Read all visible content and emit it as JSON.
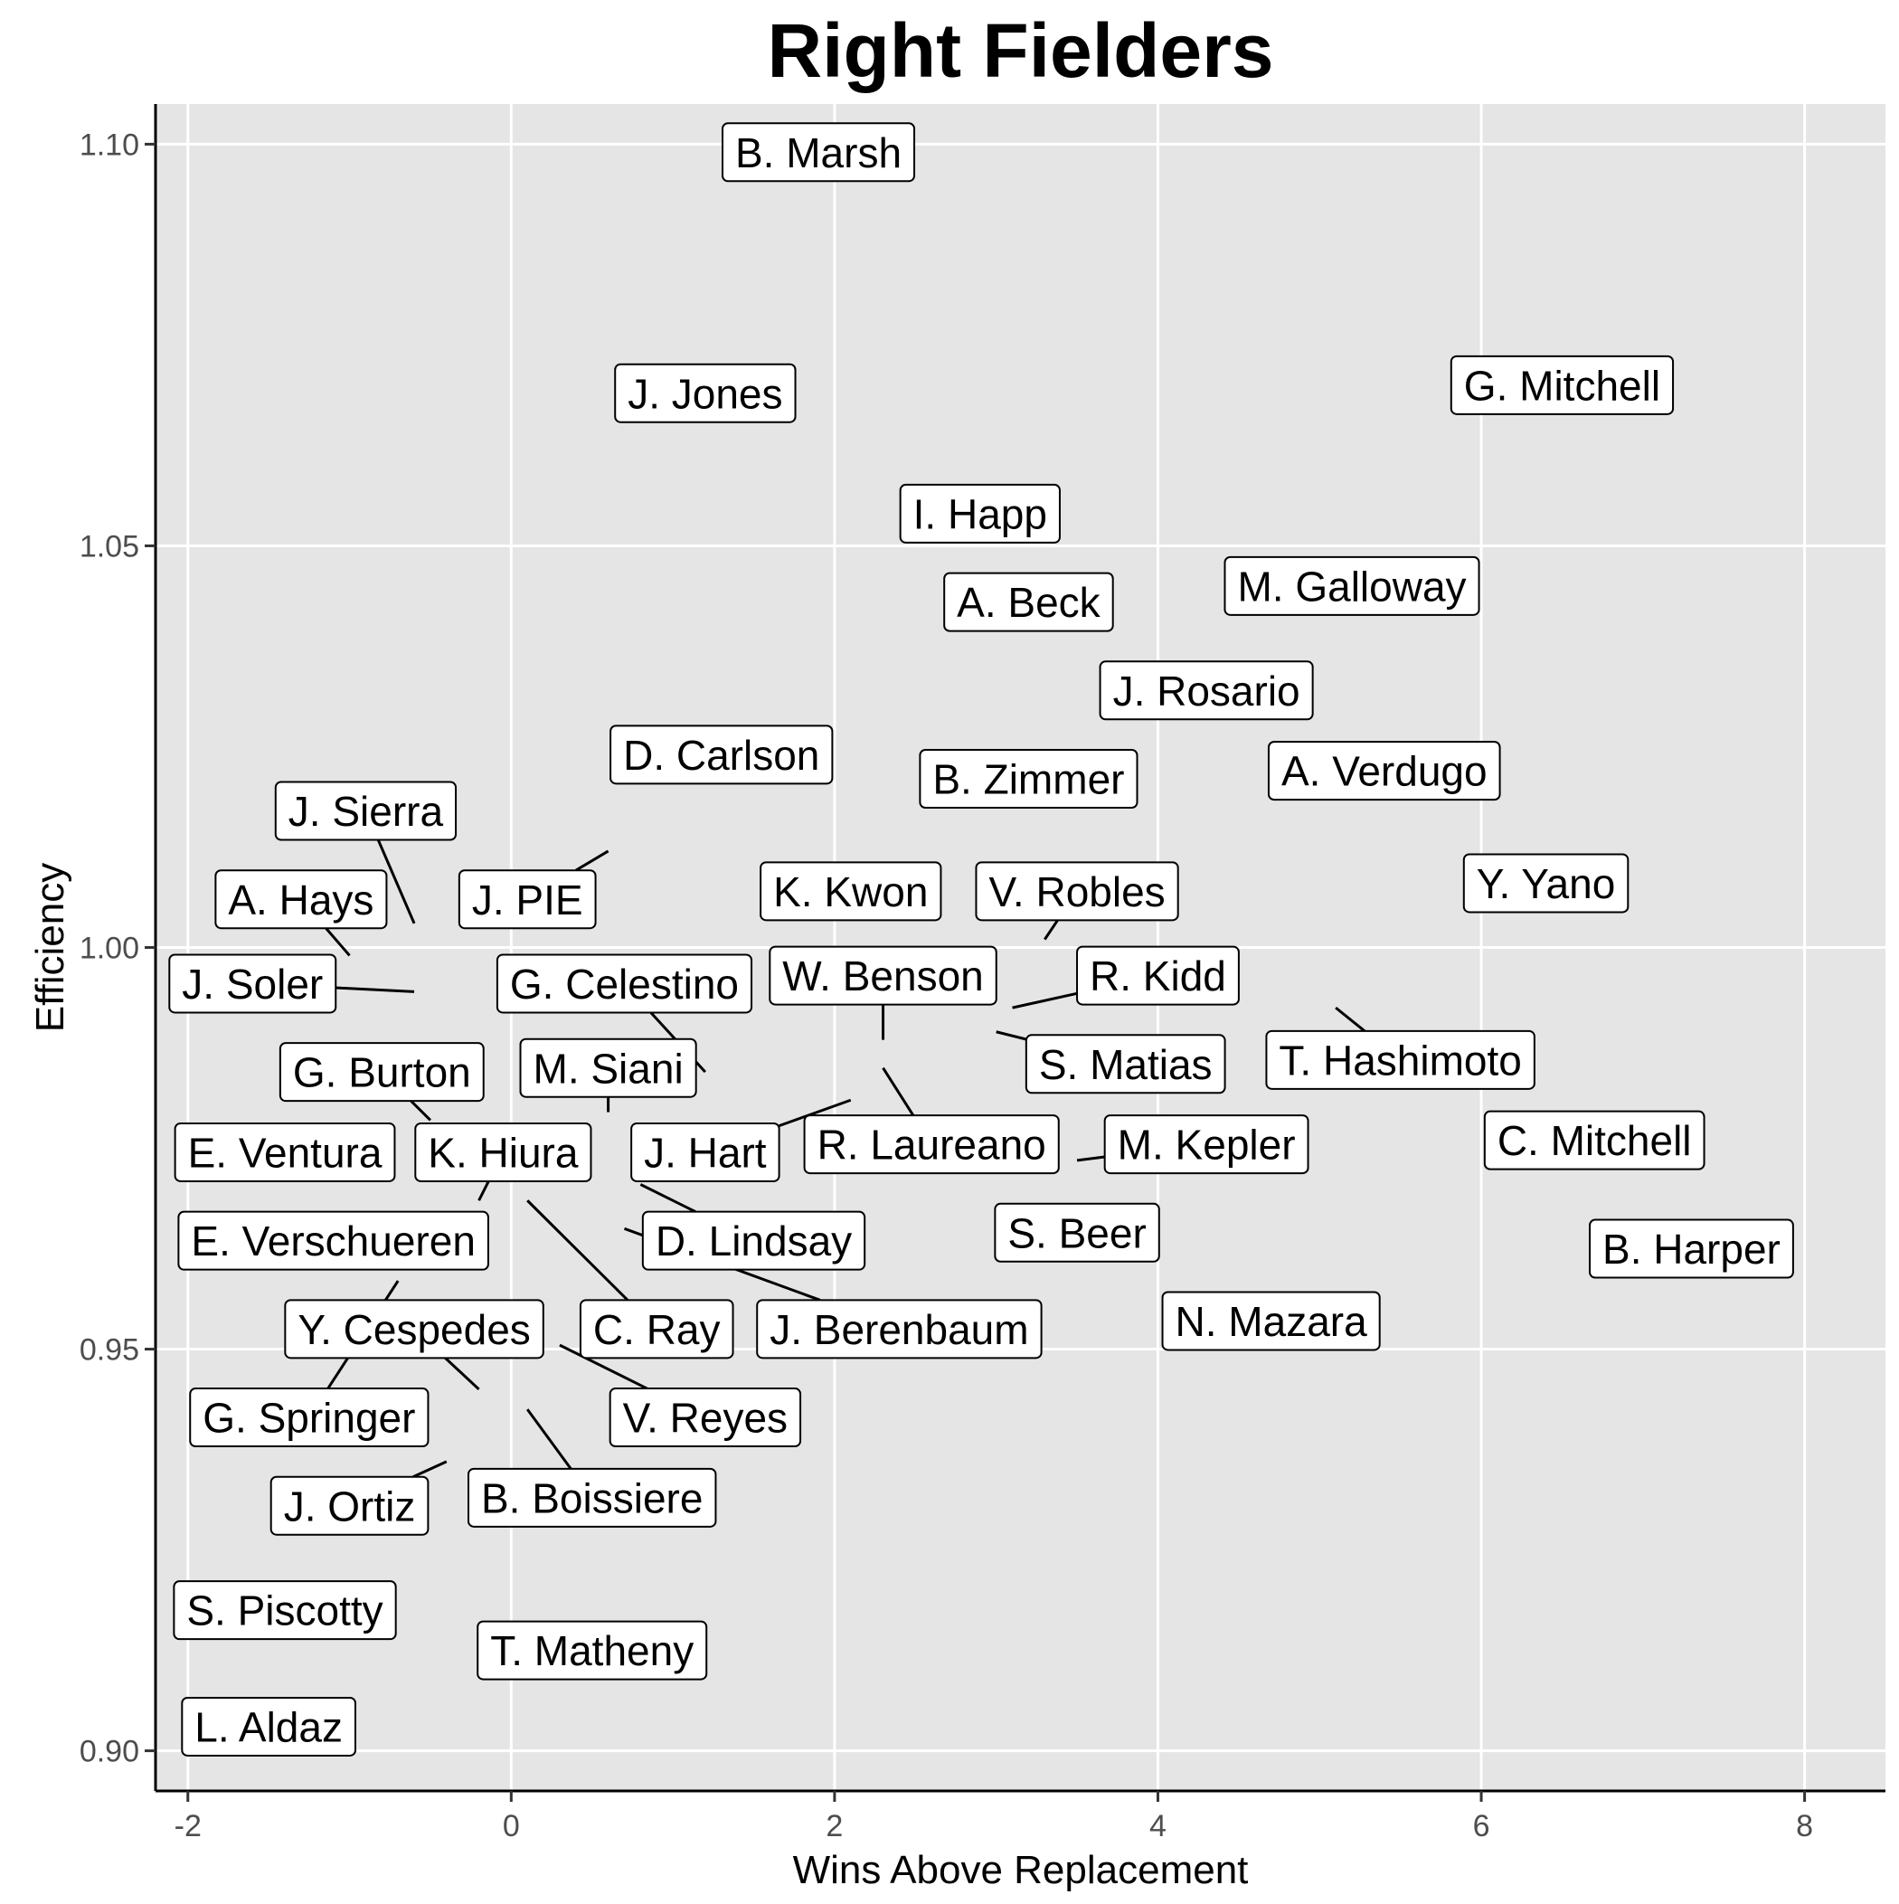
{
  "chart_data": {
    "type": "scatter",
    "title": "Right Fielders",
    "xlabel": "Wins Above Replacement",
    "ylabel": "Efficiency",
    "xlim": [
      -2.2,
      8.5
    ],
    "ylim": [
      0.895,
      1.105
    ],
    "x_ticks": [
      -2,
      0,
      2,
      4,
      6,
      8
    ],
    "x_tick_labels": [
      "-2",
      "0",
      "2",
      "4",
      "6",
      "8"
    ],
    "y_ticks": [
      0.9,
      0.95,
      1.0,
      1.05,
      1.1
    ],
    "y_tick_labels": [
      "0.90",
      "0.95",
      "1.00",
      "1.05",
      "1.10"
    ],
    "grid": true,
    "colors": {
      "panel": "#e5e5e5",
      "grid": "#ffffff",
      "label_bg": "#ffffff",
      "text": "#000000",
      "axis_text": "#4d4d4d"
    },
    "points": [
      {
        "name": "B. Marsh",
        "x": 1.9,
        "y": 1.099,
        "lx": 1.9,
        "ly": 1.099
      },
      {
        "name": "J. Jones",
        "x": 1.2,
        "y": 1.069,
        "lx": 1.2,
        "ly": 1.069
      },
      {
        "name": "G. Mitchell",
        "x": 6.5,
        "y": 1.07,
        "lx": 6.5,
        "ly": 1.07
      },
      {
        "name": "I. Happ",
        "x": 2.9,
        "y": 1.054,
        "lx": 2.9,
        "ly": 1.054
      },
      {
        "name": "A. Beck",
        "x": 3.2,
        "y": 1.043,
        "lx": 3.2,
        "ly": 1.043
      },
      {
        "name": "M. Galloway",
        "x": 5.2,
        "y": 1.045,
        "lx": 5.2,
        "ly": 1.045
      },
      {
        "name": "J. Rosario",
        "x": 4.3,
        "y": 1.032,
        "lx": 4.3,
        "ly": 1.032
      },
      {
        "name": "D. Carlson",
        "x": 1.3,
        "y": 1.024,
        "lx": 1.3,
        "ly": 1.024
      },
      {
        "name": "B. Zimmer",
        "x": 3.2,
        "y": 1.021,
        "lx": 3.2,
        "ly": 1.021
      },
      {
        "name": "A. Verdugo",
        "x": 5.4,
        "y": 1.022,
        "lx": 5.4,
        "ly": 1.022
      },
      {
        "name": "J. Sierra",
        "x": -0.6,
        "y": 1.003,
        "lx": -0.9,
        "ly": 1.017
      },
      {
        "name": "J. PIE",
        "x": 0.6,
        "y": 1.012,
        "lx": 0.1,
        "ly": 1.006
      },
      {
        "name": "A. Hays",
        "x": -1.0,
        "y": 0.999,
        "lx": -1.3,
        "ly": 1.006
      },
      {
        "name": "K. Kwon",
        "x": 2.1,
        "y": 1.007,
        "lx": 2.1,
        "ly": 1.007
      },
      {
        "name": "V. Robles",
        "x": 3.3,
        "y": 1.001,
        "lx": 3.5,
        "ly": 1.007
      },
      {
        "name": "Y. Yano",
        "x": 6.4,
        "y": 1.008,
        "lx": 6.4,
        "ly": 1.008
      },
      {
        "name": "J. Soler",
        "x": -0.6,
        "y": 0.9945,
        "lx": -1.6,
        "ly": 0.9955
      },
      {
        "name": "G. Celestino",
        "x": 1.2,
        "y": 0.9845,
        "lx": 0.7,
        "ly": 0.9955
      },
      {
        "name": "W. Benson",
        "x": 2.3,
        "y": 0.9885,
        "lx": 2.3,
        "ly": 0.9965
      },
      {
        "name": "R. Kidd",
        "x": 3.1,
        "y": 0.9925,
        "lx": 4.0,
        "ly": 0.9965
      },
      {
        "name": "S. Matias",
        "x": 3.0,
        "y": 0.9895,
        "lx": 3.8,
        "ly": 0.9855
      },
      {
        "name": "T. Hashimoto",
        "x": 5.1,
        "y": 0.9925,
        "lx": 5.5,
        "ly": 0.986
      },
      {
        "name": "G. Burton",
        "x": -0.5,
        "y": 0.9785,
        "lx": -0.8,
        "ly": 0.9845
      },
      {
        "name": "M. Siani",
        "x": 0.6,
        "y": 0.9795,
        "lx": 0.6,
        "ly": 0.985
      },
      {
        "name": "E. Ventura",
        "x": -1.4,
        "y": 0.9745,
        "lx": -1.4,
        "ly": 0.9745
      },
      {
        "name": "K. Hiura",
        "x": -0.2,
        "y": 0.9685,
        "lx": -0.05,
        "ly": 0.9745
      },
      {
        "name": "J. Hart",
        "x": 2.1,
        "y": 0.981,
        "lx": 1.2,
        "ly": 0.9745
      },
      {
        "name": "R. Laureano",
        "x": 2.3,
        "y": 0.985,
        "lx": 2.6,
        "ly": 0.9755
      },
      {
        "name": "M. Kepler",
        "x": 3.5,
        "y": 0.9735,
        "lx": 4.3,
        "ly": 0.9755
      },
      {
        "name": "C. Mitchell",
        "x": 6.7,
        "y": 0.976,
        "lx": 6.7,
        "ly": 0.976
      },
      {
        "name": "E. Verschueren",
        "x": -1.1,
        "y": 0.9635,
        "lx": -1.1,
        "ly": 0.9635
      },
      {
        "name": "D. Lindsay",
        "x": 0.8,
        "y": 0.9705,
        "lx": 1.5,
        "ly": 0.9635
      },
      {
        "name": "S. Beer",
        "x": 3.5,
        "y": 0.9645,
        "lx": 3.5,
        "ly": 0.9645
      },
      {
        "name": "B. Harper",
        "x": 7.3,
        "y": 0.9625,
        "lx": 7.3,
        "ly": 0.9625
      },
      {
        "name": "C. Ray",
        "x": 0.1,
        "y": 0.9685,
        "lx": 0.9,
        "ly": 0.9525
      },
      {
        "name": "J. Berenbaum",
        "x": 0.7,
        "y": 0.965,
        "lx": 2.4,
        "ly": 0.9525
      },
      {
        "name": "N. Mazara",
        "x": 4.7,
        "y": 0.9535,
        "lx": 4.7,
        "ly": 0.9535
      },
      {
        "name": "Y. Cespedes",
        "x": -0.2,
        "y": 0.945,
        "lx": -0.6,
        "ly": 0.9525
      },
      {
        "name": "G. Springer",
        "x": -0.7,
        "y": 0.9585,
        "lx": -1.25,
        "ly": 0.9415
      },
      {
        "name": "V. Reyes",
        "x": 0.3,
        "y": 0.9505,
        "lx": 1.2,
        "ly": 0.9415
      },
      {
        "name": "J. Ortiz",
        "x": -0.4,
        "y": 0.936,
        "lx": -1.0,
        "ly": 0.9305
      },
      {
        "name": "B. Boissiere",
        "x": 0.1,
        "y": 0.9425,
        "lx": 0.5,
        "ly": 0.9315
      },
      {
        "name": "S. Piscotty",
        "x": -1.4,
        "y": 0.9175,
        "lx": -1.4,
        "ly": 0.9175
      },
      {
        "name": "T. Matheny",
        "x": 0.5,
        "y": 0.9125,
        "lx": 0.5,
        "ly": 0.9125
      },
      {
        "name": "L. Aldaz",
        "x": -1.5,
        "y": 0.903,
        "lx": -1.5,
        "ly": 0.903
      }
    ]
  }
}
